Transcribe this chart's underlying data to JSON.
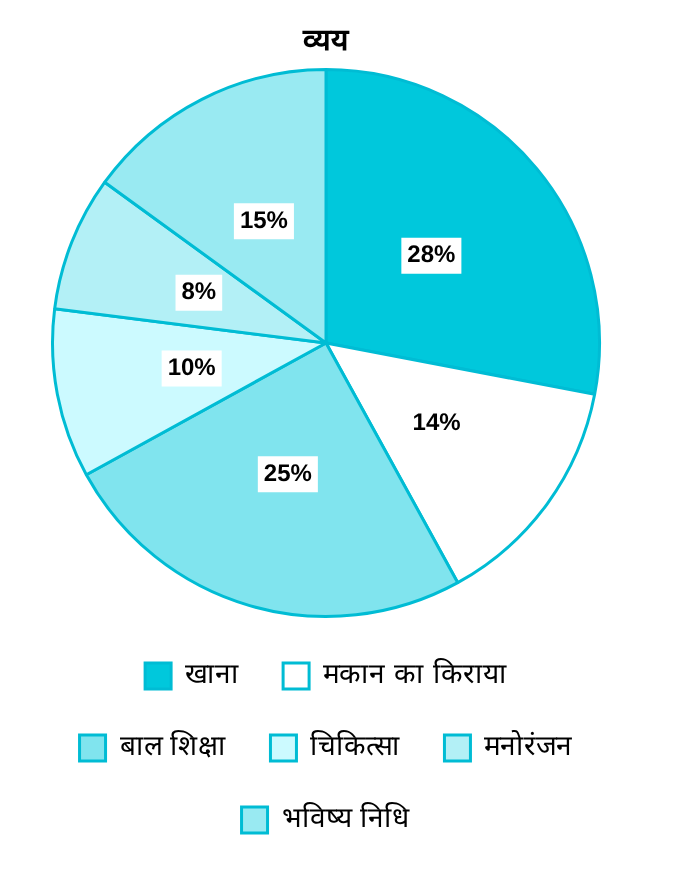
{
  "chart_data": {
    "type": "pie",
    "title": "व्यय",
    "categories": [
      "खाना",
      "मकान का किराया",
      "बाल शिक्षा",
      "चिकित्सा",
      "मनोरंजन",
      "भविष्य निधि"
    ],
    "values": [
      28,
      14,
      25,
      10,
      8,
      15
    ],
    "colors": [
      "#00c8dc",
      "#ffffff",
      "#80e4ee",
      "#ccfaff",
      "#b3f0f6",
      "#99eaf2"
    ],
    "value_labels": [
      "28%",
      "14%",
      "25%",
      "10%",
      "8%",
      "15%"
    ],
    "legend": "bottom"
  }
}
